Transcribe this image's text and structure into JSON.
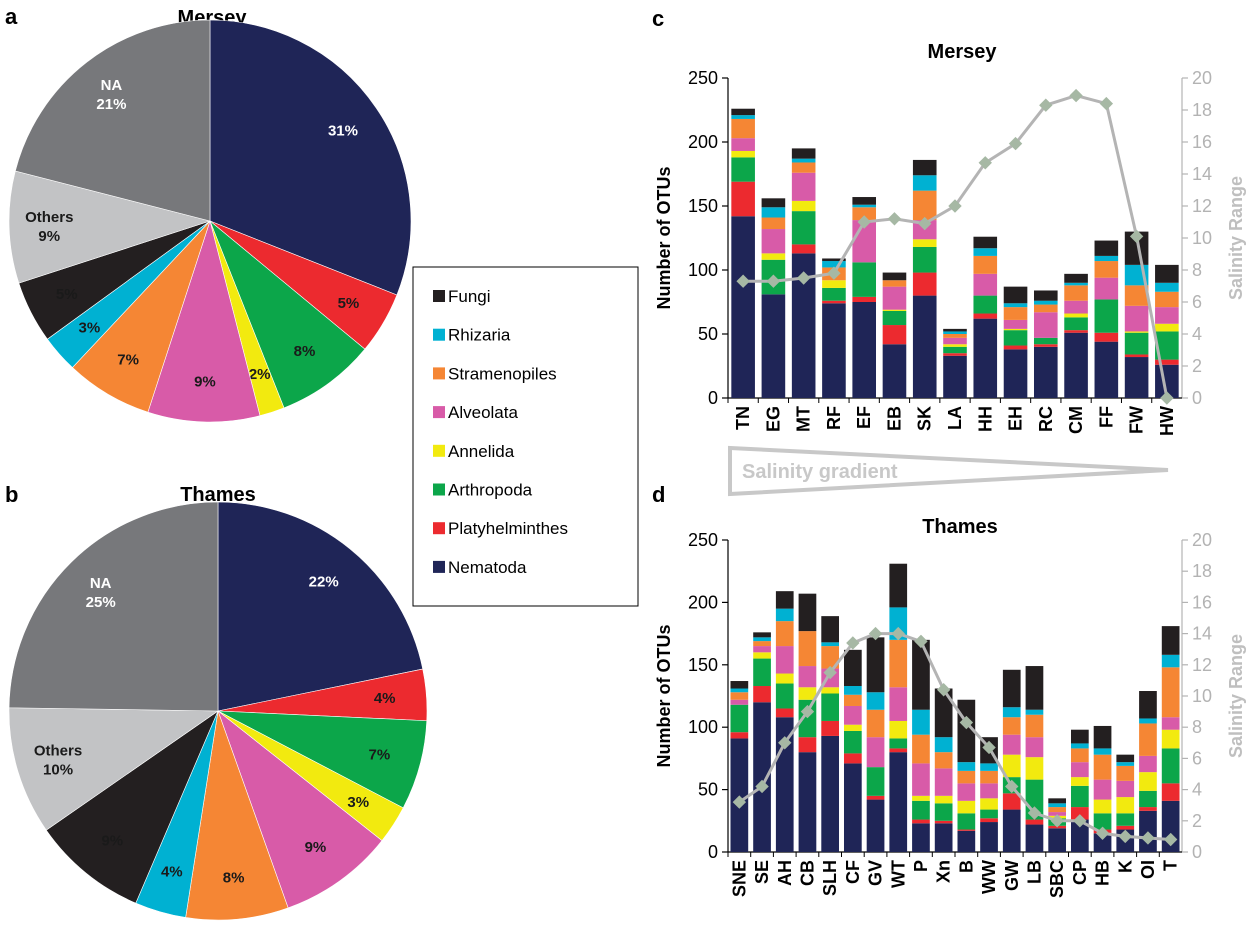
{
  "legend": [
    {
      "name": "Fungi",
      "color": "#231f20"
    },
    {
      "name": "Rhizaria",
      "color": "#00b1d2"
    },
    {
      "name": "Stramenopiles",
      "color": "#f58634"
    },
    {
      "name": "Alveolata",
      "color": "#d85ba8"
    },
    {
      "name": "Annelida",
      "color": "#f2ea0f"
    },
    {
      "name": "Arthropoda",
      "color": "#0ca64a"
    },
    {
      "name": "Platyhelminthes",
      "color": "#ec2a2f"
    },
    {
      "name": "Nematoda",
      "color": "#1f2557"
    }
  ],
  "gradient_label": "Salinity gradient",
  "chart_data": [
    {
      "type": "pie",
      "panel": "a",
      "title": "Mersey",
      "slices": [
        {
          "name": "Nematoda",
          "value": 31,
          "label": "31%",
          "color": "#1f2557"
        },
        {
          "name": "Platyhelminthes",
          "value": 5,
          "label": "5%",
          "color": "#ec2a2f"
        },
        {
          "name": "Arthropoda",
          "value": 8,
          "label": "8%",
          "color": "#0ca64a"
        },
        {
          "name": "Annelida",
          "value": 2,
          "label": "2%",
          "color": "#f2ea0f"
        },
        {
          "name": "Alveolata",
          "value": 9,
          "label": "9%",
          "color": "#d85ba8"
        },
        {
          "name": "Stramenopiles",
          "value": 7,
          "label": "7%",
          "color": "#f58634"
        },
        {
          "name": "Rhizaria",
          "value": 3,
          "label": "3%",
          "color": "#00b1d2"
        },
        {
          "name": "Fungi",
          "value": 5,
          "label": "5%",
          "color": "#231f20"
        },
        {
          "name": "Others",
          "value": 9,
          "label": "Others\n9%",
          "color": "#c2c3c5"
        },
        {
          "name": "NA",
          "value": 21,
          "label": "NA\n21%",
          "color": "#77787b"
        }
      ]
    },
    {
      "type": "pie",
      "panel": "b",
      "title": "Thames",
      "slices": [
        {
          "name": "Nematoda",
          "value": 22,
          "label": "22%",
          "color": "#1f2557"
        },
        {
          "name": "Platyhelminthes",
          "value": 4,
          "label": "4%",
          "color": "#ec2a2f"
        },
        {
          "name": "Arthropoda",
          "value": 7,
          "label": "7%",
          "color": "#0ca64a"
        },
        {
          "name": "Annelida",
          "value": 3,
          "label": "3%",
          "color": "#f2ea0f"
        },
        {
          "name": "Alveolata",
          "value": 9,
          "label": "9%",
          "color": "#d85ba8"
        },
        {
          "name": "Stramenopiles",
          "value": 8,
          "label": "8%",
          "color": "#f58634"
        },
        {
          "name": "Rhizaria",
          "value": 4,
          "label": "4%",
          "color": "#00b1d2"
        },
        {
          "name": "Fungi",
          "value": 9,
          "label": "9%",
          "color": "#231f20"
        },
        {
          "name": "Others",
          "value": 10,
          "label": "Others\n10%",
          "color": "#c2c3c5"
        },
        {
          "name": "NA",
          "value": 25,
          "label": "NA\n25%",
          "color": "#77787b"
        }
      ]
    },
    {
      "type": "bar",
      "stacked": true,
      "panel": "c",
      "title": "Mersey",
      "ylabel": "Number of OTUs",
      "y2label": "Salinity Range",
      "ylim": [
        0,
        250
      ],
      "yticks": [
        0,
        50,
        100,
        150,
        200,
        250
      ],
      "y2lim": [
        0,
        20
      ],
      "y2ticks": [
        0,
        2,
        4,
        6,
        8,
        10,
        12,
        14,
        16,
        18,
        20
      ],
      "categories": [
        "TN",
        "EG",
        "MT",
        "RF",
        "EF",
        "EB",
        "SK",
        "LA",
        "HH",
        "EH",
        "RC",
        "CM",
        "FF",
        "FW",
        "HW"
      ],
      "series": [
        {
          "name": "Nematoda",
          "values": [
            142,
            81,
            113,
            74,
            75,
            42,
            80,
            33,
            62,
            38,
            40,
            51,
            44,
            32,
            26
          ]
        },
        {
          "name": "Platyhelminthes",
          "values": [
            27,
            0,
            7,
            2,
            4,
            15,
            18,
            2,
            4,
            3,
            2,
            2,
            7,
            2,
            4
          ]
        },
        {
          "name": "Arthropoda",
          "values": [
            19,
            27,
            26,
            10,
            27,
            11,
            20,
            5,
            14,
            12,
            5,
            10,
            26,
            17,
            22
          ]
        },
        {
          "name": "Annelida",
          "values": [
            5,
            5,
            8,
            6,
            0,
            1,
            6,
            2,
            0,
            1,
            0,
            3,
            0,
            1,
            6
          ]
        },
        {
          "name": "Alveolata",
          "values": [
            10,
            19,
            22,
            0,
            33,
            18,
            15,
            5,
            17,
            7,
            20,
            10,
            17,
            20,
            13
          ]
        },
        {
          "name": "Stramenopiles",
          "values": [
            15,
            9,
            8,
            10,
            10,
            5,
            23,
            3,
            14,
            10,
            6,
            12,
            13,
            16,
            12
          ]
        },
        {
          "name": "Rhizaria",
          "values": [
            3,
            8,
            3,
            5,
            2,
            0,
            12,
            2,
            6,
            3,
            3,
            2,
            4,
            16,
            7
          ]
        },
        {
          "name": "Fungi",
          "values": [
            5,
            7,
            8,
            2,
            6,
            6,
            12,
            2,
            9,
            13,
            8,
            7,
            12,
            26,
            14
          ]
        }
      ],
      "salinity": [
        7.3,
        7.3,
        7.5,
        7.8,
        11.0,
        11.2,
        10.9,
        12.0,
        14.7,
        15.9,
        18.3,
        18.9,
        18.4,
        10.1,
        0.0
      ]
    },
    {
      "type": "bar",
      "stacked": true,
      "panel": "d",
      "title": "Thames",
      "ylabel": "Number of OTUs",
      "y2label": "Salinity Range",
      "ylim": [
        0,
        250
      ],
      "yticks": [
        0,
        50,
        100,
        150,
        200,
        250
      ],
      "y2lim": [
        0,
        20
      ],
      "y2ticks": [
        0,
        2,
        4,
        6,
        8,
        10,
        12,
        14,
        16,
        18,
        20
      ],
      "categories": [
        "SNE",
        "SE",
        "AH",
        "CB",
        "SLH",
        "CF",
        "GV",
        "WT",
        "P",
        "Xn",
        "B",
        "WW",
        "GW",
        "LB",
        "SBC",
        "CP",
        "HB",
        "K",
        "OI",
        "T"
      ],
      "series": [
        {
          "name": "Nematoda",
          "values": [
            91,
            120,
            108,
            80,
            93,
            71,
            42,
            80,
            23,
            23,
            17,
            24,
            34,
            22,
            19,
            26,
            15,
            18,
            33,
            41
          ]
        },
        {
          "name": "Platyhelminthes",
          "values": [
            5,
            13,
            7,
            12,
            12,
            8,
            3,
            3,
            3,
            2,
            1,
            3,
            13,
            4,
            2,
            10,
            3,
            3,
            3,
            14
          ]
        },
        {
          "name": "Arthropoda",
          "values": [
            22,
            22,
            20,
            30,
            22,
            18,
            23,
            8,
            15,
            14,
            13,
            7,
            13,
            32,
            6,
            17,
            13,
            10,
            13,
            28
          ]
        },
        {
          "name": "Annelida",
          "values": [
            0,
            5,
            8,
            10,
            5,
            5,
            0,
            14,
            4,
            6,
            10,
            9,
            18,
            18,
            2,
            7,
            11,
            13,
            15,
            15
          ]
        },
        {
          "name": "Alveolata",
          "values": [
            4,
            5,
            22,
            17,
            15,
            15,
            24,
            27,
            26,
            22,
            14,
            12,
            16,
            16,
            3,
            12,
            16,
            13,
            13,
            10
          ]
        },
        {
          "name": "Stramenopiles",
          "values": [
            6,
            4,
            20,
            28,
            18,
            9,
            22,
            38,
            23,
            13,
            10,
            10,
            14,
            18,
            4,
            11,
            20,
            12,
            26,
            40
          ]
        },
        {
          "name": "Rhizaria",
          "values": [
            3,
            3,
            10,
            0,
            3,
            7,
            14,
            26,
            20,
            12,
            7,
            6,
            8,
            4,
            3,
            4,
            5,
            3,
            4,
            10
          ]
        },
        {
          "name": "Fungi",
          "values": [
            6,
            4,
            14,
            30,
            21,
            29,
            44,
            35,
            56,
            39,
            50,
            21,
            30,
            35,
            4,
            11,
            18,
            6,
            22,
            23
          ]
        }
      ],
      "salinity": [
        3.2,
        4.2,
        7.0,
        9.0,
        11.5,
        13.4,
        14.0,
        14.0,
        13.5,
        10.4,
        8.3,
        6.7,
        4.2,
        2.5,
        2.0,
        2.0,
        1.2,
        1.0,
        0.9,
        0.8
      ]
    }
  ]
}
